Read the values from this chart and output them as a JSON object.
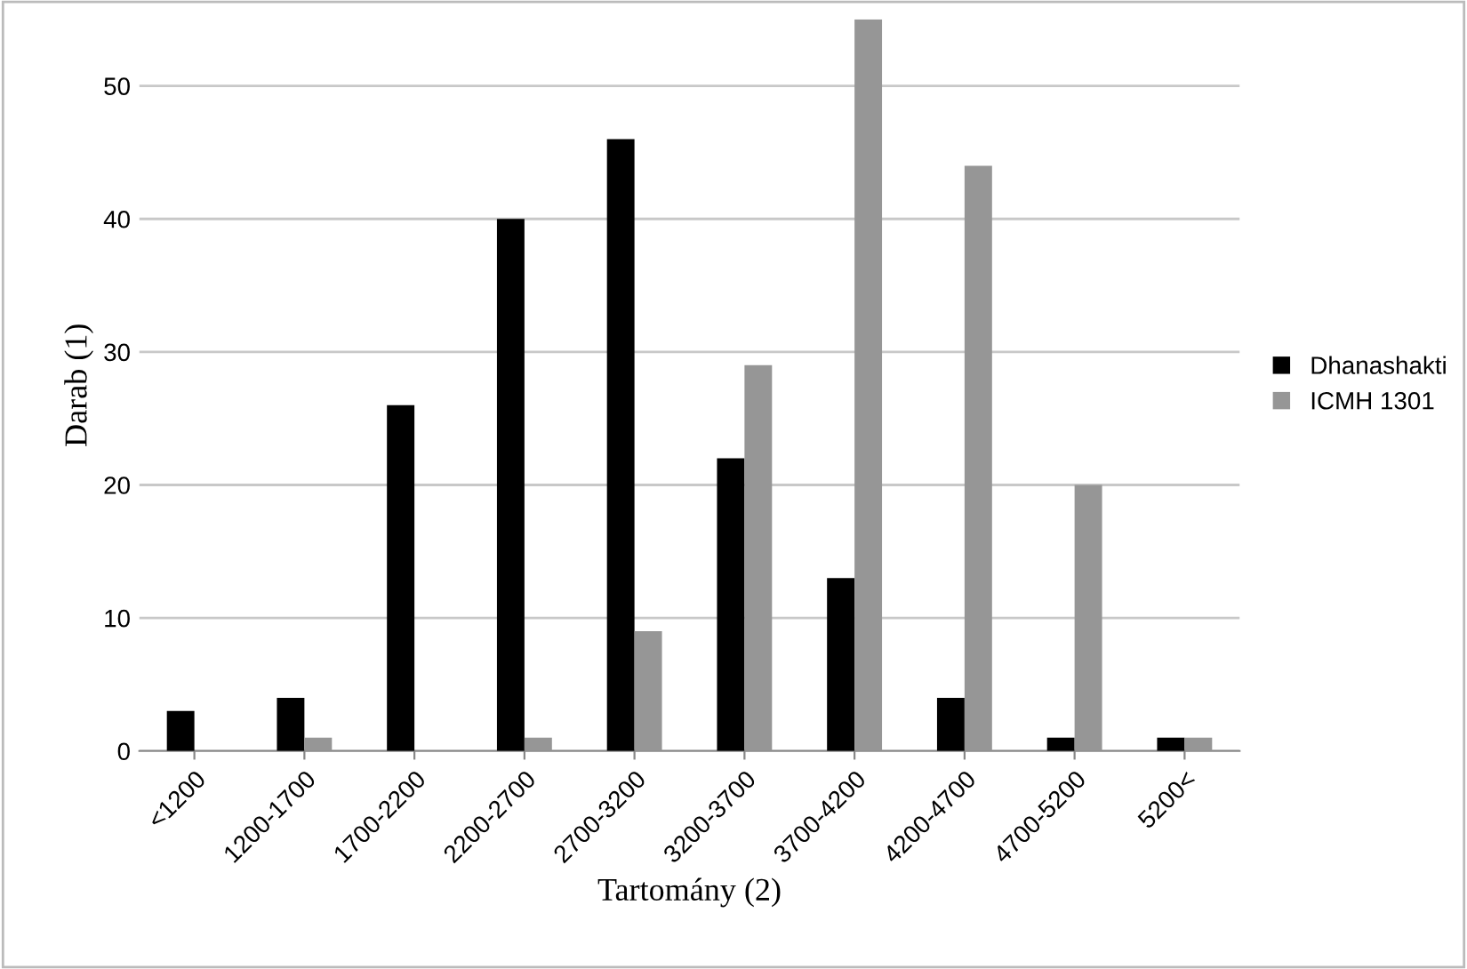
{
  "chart_data": {
    "type": "bar",
    "xlabel": "Tartomány (2)",
    "ylabel": "Darab (1)",
    "categories": [
      "<1200",
      "1200-1700",
      "1700-2200",
      "2200-2700",
      "2700-3200",
      "3200-3700",
      "3700-4200",
      "4200-4700",
      "4700-5200",
      "5200<"
    ],
    "series": [
      {
        "name": "Dhanashakti",
        "color": "#000000",
        "values": [
          3,
          4,
          26,
          40,
          46,
          22,
          13,
          4,
          1,
          1
        ]
      },
      {
        "name": "ICMH 1301",
        "color": "#969696",
        "values": [
          0,
          1,
          0,
          1,
          9,
          29,
          55,
          44,
          20,
          1
        ]
      }
    ],
    "ylim": [
      0,
      55
    ],
    "yticks": [
      0,
      10,
      20,
      30,
      40,
      50
    ],
    "grid": "y",
    "legend": "right"
  }
}
